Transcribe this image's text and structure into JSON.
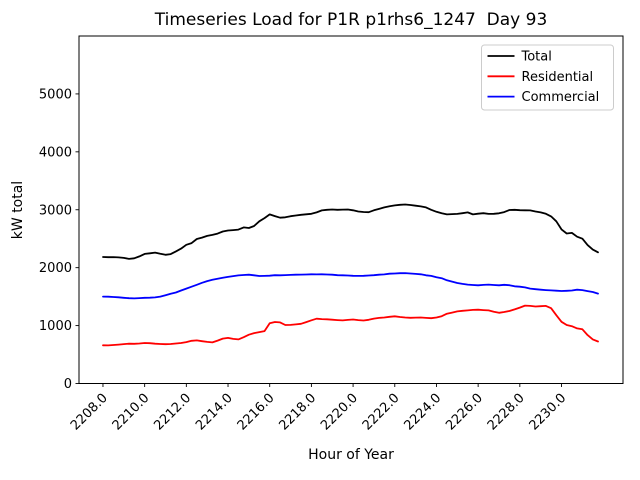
{
  "chart_data": {
    "type": "line",
    "title": "Timeseries Load for P1R p1rhs6_1247  Day 93",
    "xlabel": "Hour of Year",
    "ylabel": "kW total",
    "grid": false,
    "legend_position": "upper right",
    "xlim": [
      2206.85,
      2232.95
    ],
    "ylim": [
      0,
      6000
    ],
    "xticks": [
      2208,
      2210,
      2212,
      2214,
      2216,
      2218,
      2220,
      2222,
      2224,
      2226,
      2228,
      2230
    ],
    "xtick_labels": [
      "2208.0",
      "2210.0",
      "2212.0",
      "2214.0",
      "2216.0",
      "2218.0",
      "2220.0",
      "2222.0",
      "2224.0",
      "2226.0",
      "2228.0",
      "2230.0"
    ],
    "yticks": [
      0,
      1000,
      2000,
      3000,
      4000,
      5000
    ],
    "ytick_labels": [
      "0",
      "1000",
      "2000",
      "3000",
      "4000",
      "5000"
    ],
    "x_start": 2208.0,
    "x_step": 0.25,
    "series": [
      {
        "name": "Total",
        "color": "#000000",
        "values": [
          2185,
          2180,
          2182,
          2178,
          2168,
          2152,
          2162,
          2195,
          2238,
          2248,
          2260,
          2240,
          2222,
          2235,
          2280,
          2330,
          2395,
          2425,
          2495,
          2520,
          2548,
          2565,
          2588,
          2625,
          2642,
          2648,
          2658,
          2695,
          2685,
          2720,
          2800,
          2855,
          2920,
          2890,
          2862,
          2870,
          2888,
          2900,
          2912,
          2922,
          2930,
          2955,
          2988,
          3000,
          3005,
          3000,
          3002,
          3005,
          2990,
          2970,
          2962,
          2958,
          2990,
          3015,
          3040,
          3060,
          3075,
          3085,
          3090,
          3082,
          3070,
          3058,
          3040,
          3000,
          2965,
          2938,
          2920,
          2925,
          2928,
          2940,
          2955,
          2920,
          2932,
          2940,
          2928,
          2930,
          2938,
          2960,
          2995,
          3000,
          2992,
          2990,
          2988,
          2970,
          2955,
          2930,
          2885,
          2800,
          2660,
          2590,
          2600,
          2535,
          2500,
          2390,
          2312,
          2265
        ]
      },
      {
        "name": "Residential",
        "color": "#ff0000",
        "values": [
          660,
          658,
          664,
          672,
          680,
          688,
          685,
          690,
          700,
          695,
          688,
          682,
          678,
          682,
          690,
          700,
          715,
          738,
          745,
          730,
          718,
          710,
          740,
          775,
          788,
          770,
          762,
          800,
          842,
          870,
          888,
          905,
          1040,
          1062,
          1055,
          1010,
          1012,
          1020,
          1030,
          1060,
          1092,
          1118,
          1112,
          1108,
          1102,
          1095,
          1090,
          1098,
          1105,
          1095,
          1088,
          1100,
          1120,
          1132,
          1140,
          1152,
          1160,
          1148,
          1140,
          1135,
          1138,
          1140,
          1132,
          1128,
          1140,
          1162,
          1205,
          1225,
          1245,
          1255,
          1262,
          1270,
          1275,
          1268,
          1262,
          1240,
          1220,
          1235,
          1252,
          1280,
          1310,
          1345,
          1340,
          1330,
          1335,
          1340,
          1300,
          1180,
          1065,
          1010,
          990,
          952,
          935,
          835,
          762,
          725
        ]
      },
      {
        "name": "Commercial",
        "color": "#0000ff",
        "values": [
          1500,
          1498,
          1494,
          1488,
          1480,
          1472,
          1470,
          1474,
          1480,
          1482,
          1486,
          1500,
          1524,
          1550,
          1572,
          1605,
          1638,
          1672,
          1705,
          1738,
          1768,
          1790,
          1808,
          1825,
          1840,
          1855,
          1866,
          1874,
          1878,
          1868,
          1856,
          1858,
          1862,
          1870,
          1868,
          1872,
          1875,
          1878,
          1880,
          1882,
          1885,
          1884,
          1885,
          1882,
          1879,
          1870,
          1868,
          1865,
          1860,
          1858,
          1860,
          1865,
          1870,
          1878,
          1884,
          1895,
          1900,
          1904,
          1907,
          1900,
          1892,
          1885,
          1868,
          1858,
          1835,
          1818,
          1782,
          1760,
          1736,
          1720,
          1708,
          1700,
          1695,
          1702,
          1708,
          1700,
          1695,
          1705,
          1698,
          1678,
          1672,
          1660,
          1638,
          1628,
          1620,
          1612,
          1608,
          1602,
          1597,
          1600,
          1605,
          1620,
          1612,
          1595,
          1580,
          1552
        ]
      }
    ]
  }
}
